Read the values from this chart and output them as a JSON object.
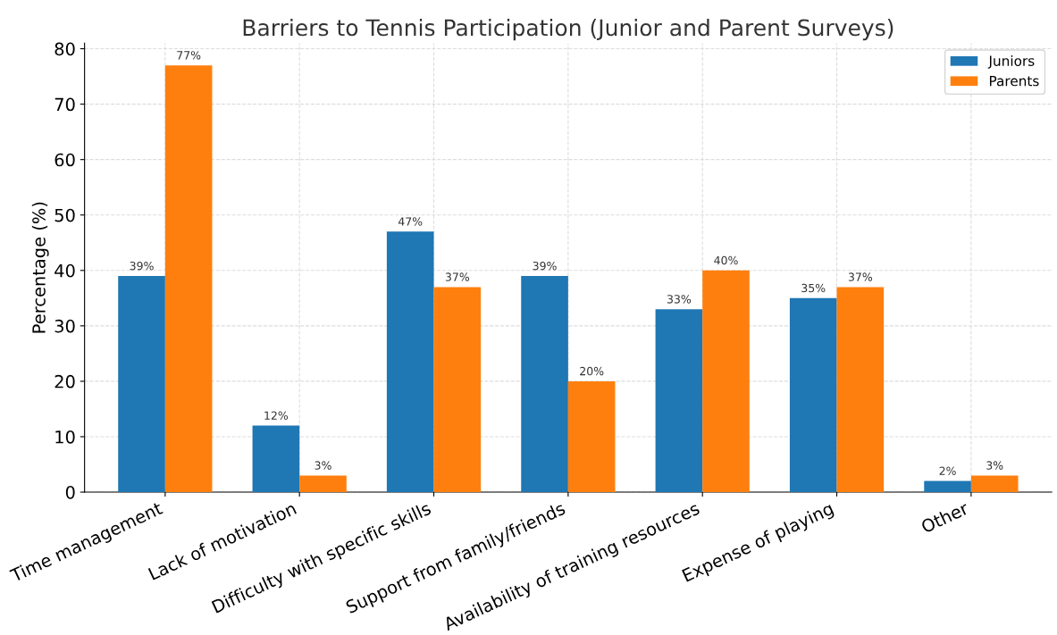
{
  "chart_data": {
    "type": "bar",
    "title": "Barriers to Tennis Participation (Junior and Parent Surveys)",
    "ylabel": "Percentage (%)",
    "categories": [
      "Time management",
      "Lack of motivation",
      "Difficulty with specific skills",
      "Support from family/friends",
      "Availability of training resources",
      "Expense of playing",
      "Other"
    ],
    "series": [
      {
        "name": "Juniors",
        "color": "#1f77b4",
        "values": [
          39,
          12,
          47,
          39,
          33,
          35,
          2
        ],
        "value_labels": [
          "39%",
          "12%",
          "47%",
          "39%",
          "33%",
          "35%",
          "2%"
        ]
      },
      {
        "name": "Parents",
        "color": "#ff7f0e",
        "values": [
          77,
          3,
          37,
          20,
          40,
          37,
          3
        ],
        "value_labels": [
          "77%",
          "3%",
          "37%",
          "20%",
          "40%",
          "37%",
          "3%"
        ]
      }
    ],
    "ylim": [
      0,
      81
    ],
    "yticks": [
      0,
      10,
      20,
      30,
      40,
      50,
      60,
      70,
      80
    ],
    "grid": true,
    "legend": "top right"
  }
}
